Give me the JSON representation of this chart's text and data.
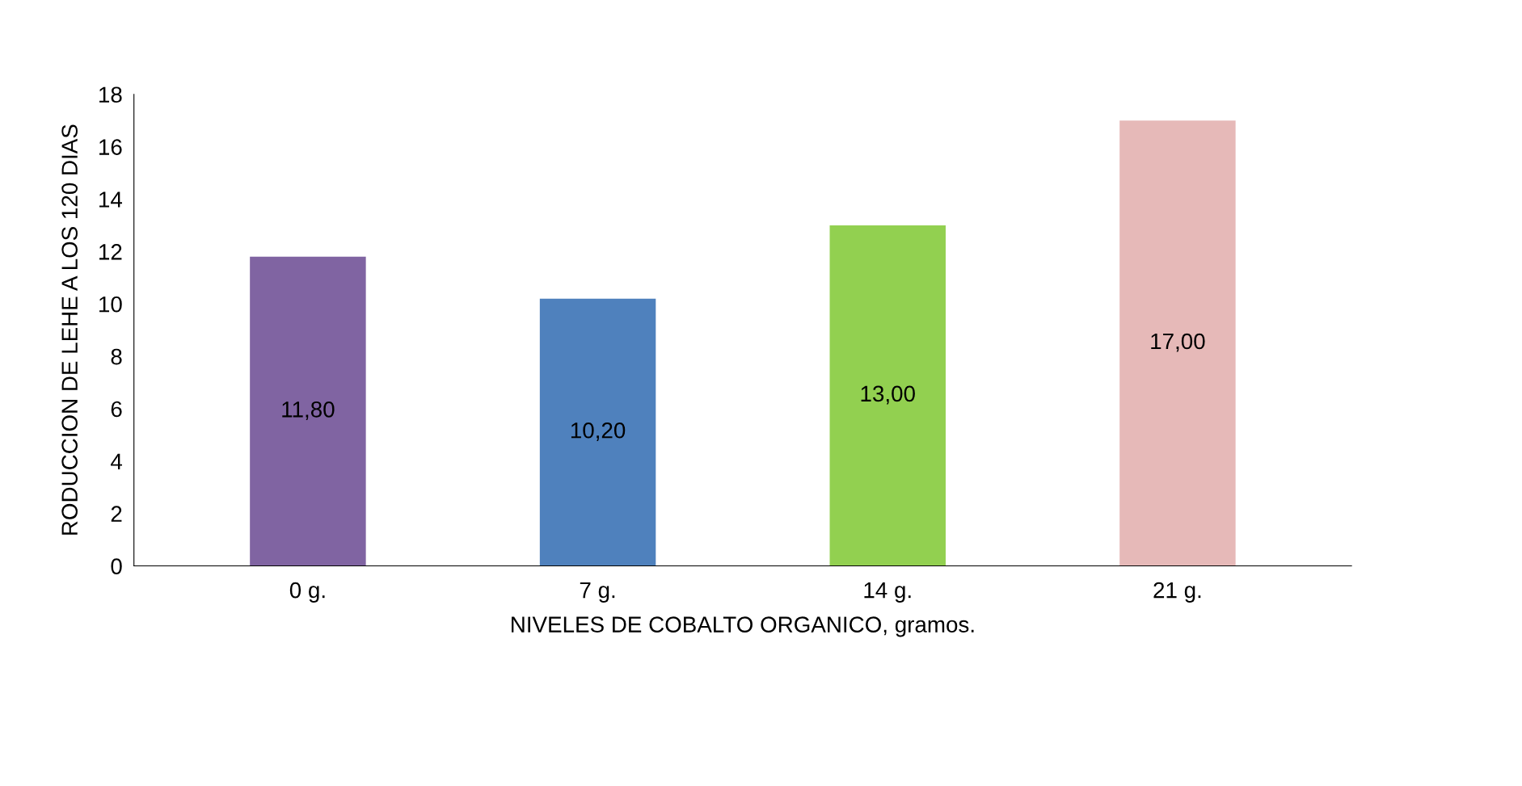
{
  "chart_data": {
    "type": "bar",
    "xlabel": "NIVELES DE COBALTO ORGANICO, gramos.",
    "ylabel": "RODUCCION DE LEHE A LOS 120 DIAS",
    "categories": [
      "0 g.",
      "7 g.",
      "14 g.",
      "21 g."
    ],
    "values": [
      11.8,
      10.2,
      13.0,
      17.0
    ],
    "value_labels": [
      "11,80",
      "10,20",
      "13,00",
      "17,00"
    ],
    "colors": [
      "#8064a2",
      "#4f81bd",
      "#92d050",
      "#e6b9b8"
    ],
    "ylim": [
      0,
      18
    ],
    "yticks": [
      0,
      2,
      4,
      6,
      8,
      10,
      12,
      14,
      16,
      18
    ],
    "grid": false,
    "legend": false
  }
}
